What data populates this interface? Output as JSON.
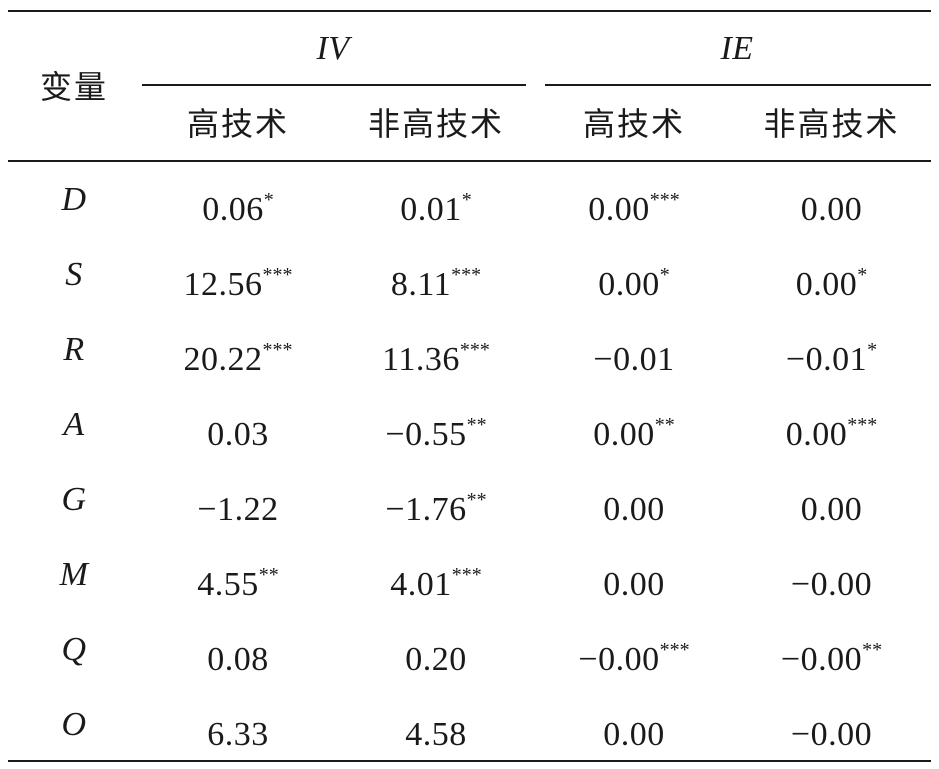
{
  "chart_data": {
    "type": "table",
    "header": {
      "row_label": "变量",
      "groups": [
        {
          "label": "IV",
          "columns": [
            "高技术",
            "非高技术"
          ]
        },
        {
          "label": "IE",
          "columns": [
            "高技术",
            "非高技术"
          ]
        }
      ]
    },
    "rows": [
      {
        "var": "D",
        "cells": [
          {
            "v": "0.06",
            "s": "*"
          },
          {
            "v": "0.01",
            "s": "*"
          },
          {
            "v": "0.00",
            "s": "***"
          },
          {
            "v": "0.00",
            "s": ""
          }
        ]
      },
      {
        "var": "S",
        "cells": [
          {
            "v": "12.56",
            "s": "***"
          },
          {
            "v": "8.11",
            "s": "***"
          },
          {
            "v": "0.00",
            "s": "*"
          },
          {
            "v": "0.00",
            "s": "*"
          }
        ]
      },
      {
        "var": "R",
        "cells": [
          {
            "v": "20.22",
            "s": "***"
          },
          {
            "v": "11.36",
            "s": "***"
          },
          {
            "v": "−0.01",
            "s": ""
          },
          {
            "v": "−0.01",
            "s": "*"
          }
        ]
      },
      {
        "var": "A",
        "cells": [
          {
            "v": "0.03",
            "s": ""
          },
          {
            "v": "−0.55",
            "s": "**"
          },
          {
            "v": "0.00",
            "s": "**"
          },
          {
            "v": "0.00",
            "s": "***"
          }
        ]
      },
      {
        "var": "G",
        "cells": [
          {
            "v": "−1.22",
            "s": ""
          },
          {
            "v": "−1.76",
            "s": "**"
          },
          {
            "v": "0.00",
            "s": ""
          },
          {
            "v": "0.00",
            "s": ""
          }
        ]
      },
      {
        "var": "M",
        "cells": [
          {
            "v": "4.55",
            "s": "**"
          },
          {
            "v": "4.01",
            "s": "***"
          },
          {
            "v": "0.00",
            "s": ""
          },
          {
            "v": "−0.00",
            "s": ""
          }
        ]
      },
      {
        "var": "Q",
        "cells": [
          {
            "v": "0.08",
            "s": ""
          },
          {
            "v": "0.20",
            "s": ""
          },
          {
            "v": "−0.00",
            "s": "***"
          },
          {
            "v": "−0.00",
            "s": "**"
          }
        ]
      },
      {
        "var": "O",
        "cells": [
          {
            "v": "6.33",
            "s": ""
          },
          {
            "v": "4.58",
            "s": ""
          },
          {
            "v": "0.00",
            "s": ""
          },
          {
            "v": "−0.00",
            "s": ""
          }
        ]
      }
    ]
  }
}
